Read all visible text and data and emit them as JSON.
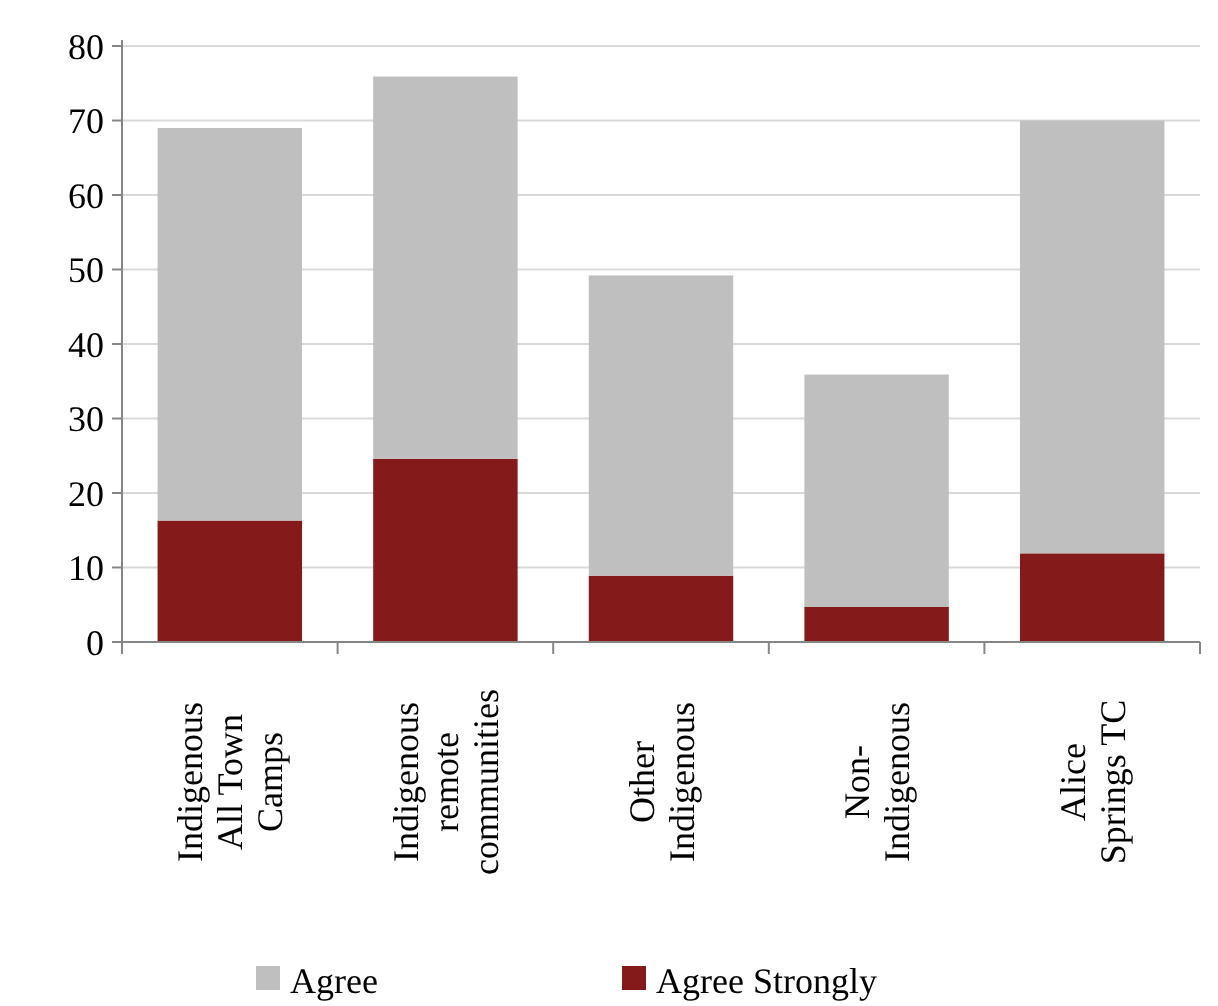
{
  "chart_data": {
    "type": "bar",
    "stacked": true,
    "categories": [
      "Indigenous\nAll Town\nCamps",
      "Indigenous\nremote\ncommunities",
      "Other\nIndigenous",
      "Non-\nIndigenous",
      "Alice\nSprings TC"
    ],
    "series": [
      {
        "name": "Agree Strongly",
        "color": "#841a1a",
        "values": [
          16.3,
          24.6,
          8.9,
          4.7,
          11.9
        ]
      },
      {
        "name": "Agree",
        "color": "#bfbfbf",
        "values": [
          52.7,
          51.3,
          40.3,
          31.2,
          58.1
        ]
      }
    ],
    "ylim": [
      0,
      80
    ],
    "yticks": [
      0,
      10,
      20,
      30,
      40,
      50,
      60,
      70,
      80
    ],
    "grid": "y",
    "legend": "bottom"
  }
}
